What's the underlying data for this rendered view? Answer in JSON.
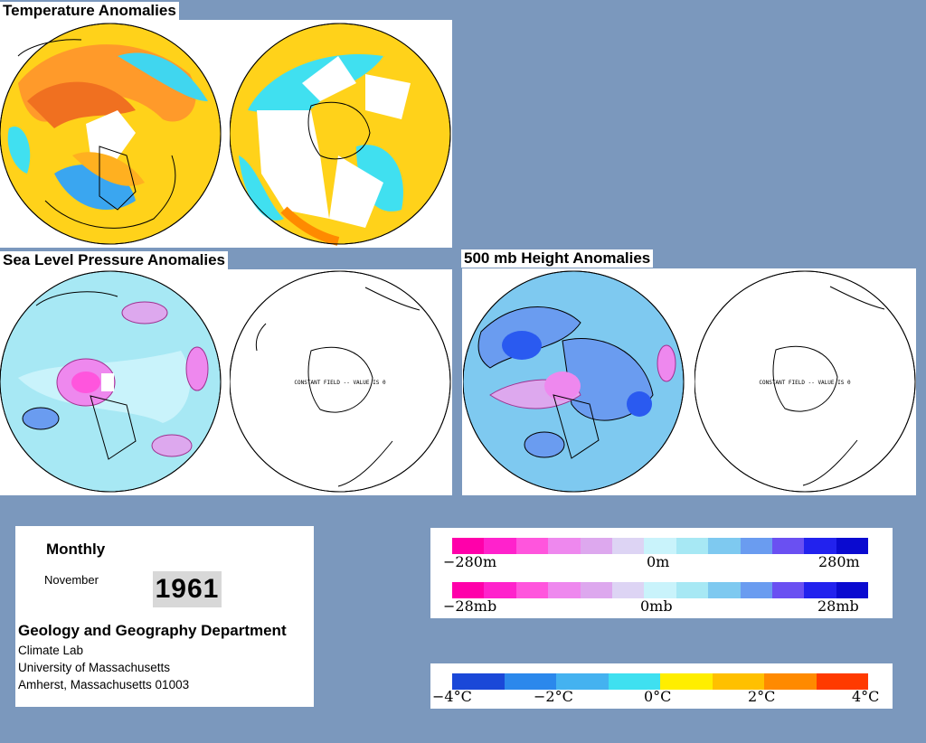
{
  "titles": {
    "temperature": "Temperature Anomalies",
    "slp": "Sea Level Pressure Anomalies",
    "height500": "500 mb Height Anomalies"
  },
  "globe_annotations": {
    "constant_field": "CONSTANT FIELD -- VALUE IS 0"
  },
  "info": {
    "period": "Monthly",
    "month": "November",
    "year": "1961",
    "department": "Geology and Geography Department",
    "lab": "Climate Lab",
    "university": "University of Massachusetts",
    "address": "Amherst, Massachusetts 01003"
  },
  "scales": {
    "height": {
      "min": "−280m",
      "mid": "0m",
      "max": "280m"
    },
    "pressure": {
      "min": "−28mb",
      "mid": "0mb",
      "max": "28mb"
    },
    "temperature": {
      "t1": "−4°C",
      "t2": "−2°C",
      "t3": "0°C",
      "t4": "2°C",
      "t5": "4°C"
    }
  },
  "colors": {
    "background": "#7b98bd",
    "anomaly_scale": [
      "#ff00aa",
      "#ff22cc",
      "#ff55dd",
      "#ee88ee",
      "#dda8ee",
      "#ddd4f4",
      "#c9f3fb",
      "#a7e8f4",
      "#7ec9f0",
      "#6a9cf0",
      "#6a50f2",
      "#2222ee",
      "#0a0ad0"
    ],
    "temp_scale": [
      "#1a48d8",
      "#2b88ec",
      "#44b2f0",
      "#3fe0f0",
      "#ffee00",
      "#ffc000",
      "#ff8a00",
      "#ff3a00"
    ]
  }
}
